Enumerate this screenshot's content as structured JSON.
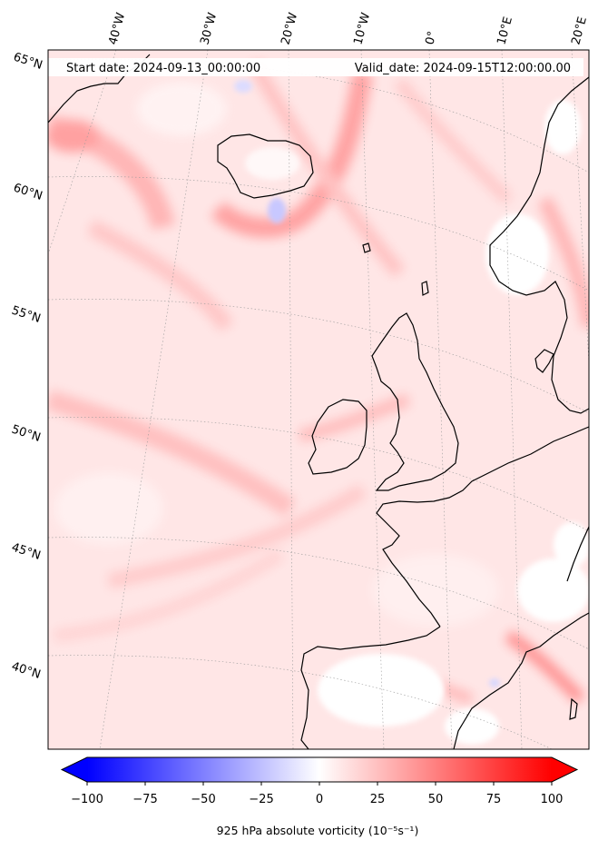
{
  "header": {
    "start_date": "Start date: 2024-09-13_00:00:00",
    "valid_date": "Valid_date: 2024-09-15T12:00:00.00"
  },
  "map": {
    "projection": "conic",
    "region": "North Atlantic and Western Europe",
    "field": "925 hPa absolute vorticity",
    "lon_labels": [
      "40°W",
      "30°W",
      "20°W",
      "10°W",
      "0°",
      "10°E",
      "20°E"
    ],
    "lat_labels": [
      "65°N",
      "60°N",
      "55°N",
      "50°N",
      "45°N",
      "40°N"
    ],
    "gridlines": "dotted grey",
    "coastlines": "black",
    "colors": {
      "negative": "#0000ff",
      "zero": "#ffffff",
      "positive": "#ff0000"
    }
  },
  "colorbar": {
    "label": "925 hPa absolute vorticity (10⁻⁵s⁻¹)",
    "ticks": [
      "−100",
      "−75",
      "−50",
      "−25",
      "0",
      "25",
      "50",
      "75",
      "100"
    ],
    "range": [
      -100,
      100
    ],
    "extend": "both",
    "cmap": "bwr"
  }
}
